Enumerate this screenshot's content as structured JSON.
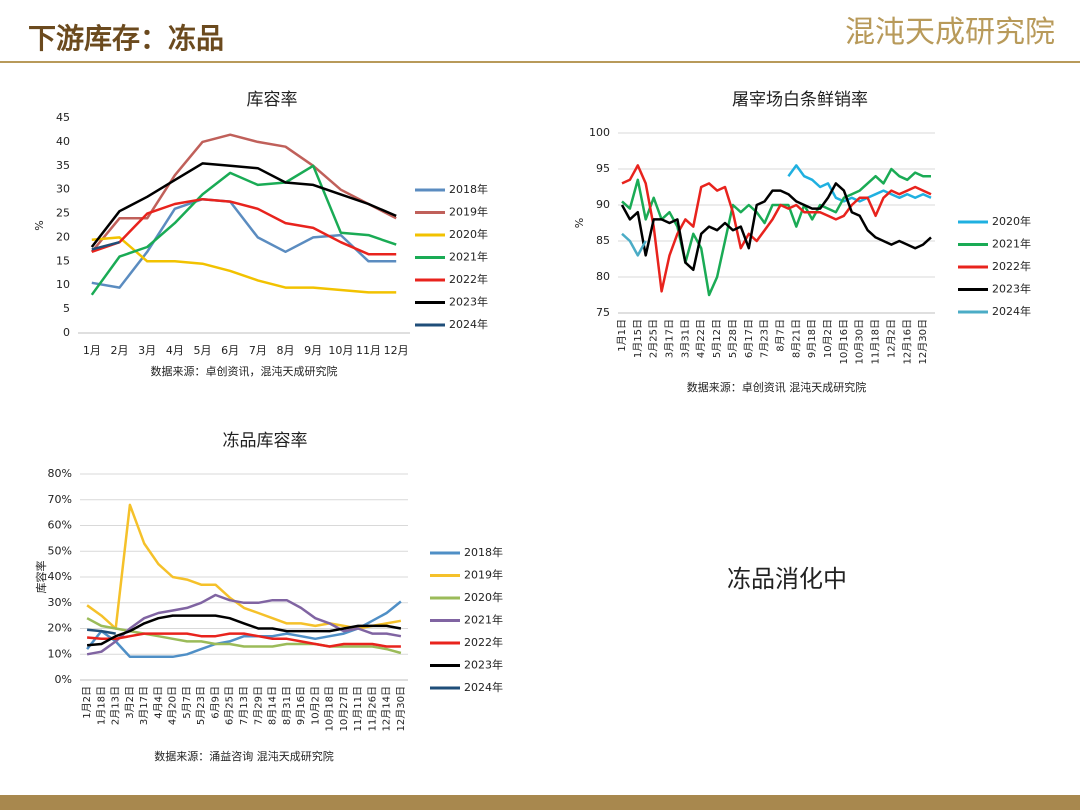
{
  "header": {
    "title": "下游库存：冻品",
    "logo": "混沌天成研究院"
  },
  "note": "冻品消化中",
  "chart_data": [
    {
      "type": "line",
      "title": "库容率",
      "ylabel": "%",
      "source": "数据来源：卓创资讯，混沌天成研究院",
      "categories": [
        "1月",
        "2月",
        "3月",
        "4月",
        "5月",
        "6月",
        "7月",
        "8月",
        "9月",
        "10月",
        "11月",
        "12月"
      ],
      "ylim": [
        0,
        45
      ],
      "yticks": [
        0,
        5,
        10,
        15,
        20,
        25,
        30,
        35,
        40,
        45
      ],
      "grid": false,
      "legend": "right",
      "series": [
        {
          "name": "2018年",
          "color": "#5b8cc0",
          "values": [
            10.5,
            9.5,
            17,
            26,
            28,
            27.5,
            20,
            17,
            20,
            20.5,
            15,
            15
          ]
        },
        {
          "name": "2019年",
          "color": "#c0605a",
          "values": [
            17,
            24,
            24,
            33,
            40,
            41.5,
            40,
            39,
            35,
            30,
            27,
            24
          ]
        },
        {
          "name": "2020年",
          "color": "#f2c200",
          "values": [
            19.5,
            20,
            15,
            15,
            14.5,
            13,
            11,
            9.5,
            9.5,
            9,
            8.5,
            8.5
          ]
        },
        {
          "name": "2021年",
          "color": "#1aab55",
          "values": [
            8,
            16,
            18,
            23,
            29,
            33.5,
            31,
            31.5,
            35,
            21,
            20.5,
            18.5
          ]
        },
        {
          "name": "2022年",
          "color": "#e8231d",
          "values": [
            17,
            19,
            25,
            27,
            28,
            27.5,
            26,
            23,
            22,
            19,
            16.5,
            16.5
          ]
        },
        {
          "name": "2023年",
          "color": "#000000",
          "values": [
            18,
            25.5,
            28.5,
            32,
            35.5,
            35,
            34.5,
            31.5,
            31,
            29,
            27,
            24.5
          ]
        },
        {
          "name": "2024年",
          "color": "#1f4e79",
          "values": [
            17.5,
            19,
            null,
            null,
            null,
            null,
            null,
            null,
            null,
            null,
            null,
            null
          ]
        }
      ]
    },
    {
      "type": "line",
      "title": "屠宰场白条鲜销率",
      "ylabel": "%",
      "source": "数据来源：卓创资讯 混沌天成研究院",
      "categories": [
        "1月1日",
        null,
        "1月15日",
        null,
        "2月25日",
        null,
        "3月17日",
        null,
        "3月31日",
        null,
        "4月22日",
        null,
        "5月12日",
        null,
        "5月28日",
        null,
        "6月17日",
        null,
        "7月23日",
        null,
        "8月7日",
        null,
        "8月21日",
        null,
        "9月18日",
        null,
        "10月2日",
        null,
        "10月16日",
        null,
        "10月30日",
        null,
        "11月18日",
        null,
        "12月2日",
        null,
        "12月16日",
        null,
        "12月30日",
        null
      ],
      "ylim": [
        75,
        100
      ],
      "yticks": [
        75,
        80,
        85,
        90,
        95,
        100
      ],
      "grid": true,
      "legend": "right",
      "series": [
        {
          "name": "2020年",
          "color": "#1fb0e0",
          "values": [
            null,
            null,
            null,
            null,
            null,
            null,
            null,
            null,
            null,
            null,
            null,
            null,
            null,
            null,
            null,
            null,
            null,
            null,
            null,
            null,
            null,
            94,
            95.5,
            94,
            93.5,
            92.5,
            93,
            91,
            90.5,
            91,
            90.5,
            91,
            91.5,
            92,
            91.5,
            91,
            91.5,
            91,
            91.5,
            91
          ]
        },
        {
          "name": "2021年",
          "color": "#1aab55",
          "values": [
            90.5,
            89.5,
            93.5,
            88,
            91,
            88,
            89,
            87,
            82,
            86,
            84,
            77.5,
            80,
            85,
            90,
            89,
            90,
            89,
            87.5,
            90,
            90,
            90,
            87,
            90,
            88,
            90,
            89.5,
            89,
            91,
            91.5,
            92,
            93,
            94,
            93,
            95,
            94,
            93.5,
            94.5,
            94,
            94
          ]
        },
        {
          "name": "2022年",
          "color": "#e8231d",
          "values": [
            93,
            93.5,
            95.5,
            93,
            87,
            78,
            83,
            86,
            88,
            87,
            92.5,
            93,
            92,
            92.5,
            89,
            84,
            86,
            85,
            86.5,
            88,
            90,
            89.5,
            90,
            89,
            89,
            89,
            88.5,
            88,
            88.5,
            90,
            91,
            91,
            88.5,
            91,
            92,
            91.5,
            92,
            92.5,
            92,
            91.5
          ]
        },
        {
          "name": "2023年",
          "color": "#000000",
          "values": [
            90,
            88,
            89,
            83,
            88,
            88,
            87.5,
            88,
            82,
            81,
            86,
            87,
            86.5,
            87.5,
            86.5,
            87,
            84,
            90,
            90.5,
            92,
            92,
            91.5,
            90.5,
            90,
            89.5,
            89.5,
            91,
            93,
            92,
            89,
            88.5,
            86.5,
            85.5,
            85,
            84.5,
            85,
            84.5,
            84,
            84.5,
            85.5
          ]
        },
        {
          "name": "2024年",
          "color": "#4bacc6",
          "values": [
            86,
            85,
            83,
            85,
            null,
            null,
            null,
            null,
            null,
            null,
            null,
            null,
            null,
            null,
            null,
            null,
            null,
            null,
            null,
            null,
            null,
            null,
            null,
            null,
            null,
            null,
            null,
            null,
            null,
            null,
            null,
            null,
            null,
            null,
            null,
            null,
            null,
            null,
            null,
            null
          ]
        }
      ]
    },
    {
      "type": "line",
      "title": "冻品库容率",
      "ylabel": "库容率",
      "source": "数据来源：涌益咨询 混沌天成研究院",
      "categories": [
        "1月2日",
        "1月18日",
        "2月13日",
        "3月2日",
        "3月17日",
        "4月4日",
        "4月20日",
        "5月7日",
        "5月23日",
        "6月9日",
        "6月25日",
        "7月13日",
        "7月29日",
        "8月14日",
        "8月31日",
        "9月16日",
        "10月2日",
        "10月18日",
        "10月27日",
        "11月11日",
        "11月26日",
        "12月14日",
        "12月30日"
      ],
      "ylim": [
        0,
        80
      ],
      "yticks": [
        {
          "value": 0,
          "label": "0%"
        },
        {
          "value": 10,
          "label": "10%"
        },
        {
          "value": 20,
          "label": "20%"
        },
        {
          "value": 30,
          "label": "30%"
        },
        {
          "value": 40,
          "label": "40%"
        },
        {
          "value": 50,
          "label": "50%"
        },
        {
          "value": 60,
          "label": "60%"
        },
        {
          "value": 70,
          "label": "70%"
        },
        {
          "value": 80,
          "label": "80%"
        }
      ],
      "grid": true,
      "legend": "right",
      "series": [
        {
          "name": "2018年",
          "color": "#4f8fc6",
          "values": [
            12,
            19,
            15,
            9,
            9,
            9,
            9,
            10,
            12,
            14,
            15,
            17,
            17,
            17,
            18,
            17,
            16,
            17,
            18,
            20,
            23,
            26,
            30.5
          ]
        },
        {
          "name": "2019年",
          "color": "#f5c12a",
          "values": [
            29,
            25,
            20,
            68,
            53,
            45,
            40,
            39,
            37,
            37,
            32,
            28,
            26,
            24,
            22,
            22,
            21,
            22,
            21,
            20,
            21,
            22,
            23
          ]
        },
        {
          "name": "2020年",
          "color": "#9bbb59",
          "values": [
            24,
            21,
            20,
            19,
            18,
            17,
            16,
            15,
            15,
            14,
            14,
            13,
            13,
            13,
            14,
            14,
            14,
            13,
            13,
            13,
            13,
            12,
            10.5
          ]
        },
        {
          "name": "2021年",
          "color": "#8064a2",
          "values": [
            10,
            11,
            15,
            20,
            24,
            26,
            27,
            28,
            30,
            33,
            31,
            30,
            30,
            31,
            31,
            28,
            24,
            22,
            19,
            20,
            18,
            18,
            17
          ]
        },
        {
          "name": "2022年",
          "color": "#e8231d",
          "values": [
            16.5,
            16,
            16,
            17,
            18,
            18,
            18,
            18,
            17,
            17,
            18,
            18,
            17,
            16,
            16,
            15,
            14,
            13,
            14,
            14,
            14,
            13,
            13
          ]
        },
        {
          "name": "2023年",
          "color": "#000000",
          "values": [
            13.5,
            14,
            17,
            19,
            22,
            24,
            25,
            25,
            25,
            25,
            24,
            22,
            20,
            20,
            19,
            19,
            19,
            19,
            20,
            21,
            21,
            21,
            20
          ]
        },
        {
          "name": "2024年",
          "color": "#1f4e79",
          "values": [
            19.5,
            19,
            18,
            null,
            null,
            null,
            null,
            null,
            null,
            null,
            null,
            null,
            null,
            null,
            null,
            null,
            null,
            null,
            null,
            null,
            null,
            null,
            null
          ]
        }
      ]
    }
  ]
}
